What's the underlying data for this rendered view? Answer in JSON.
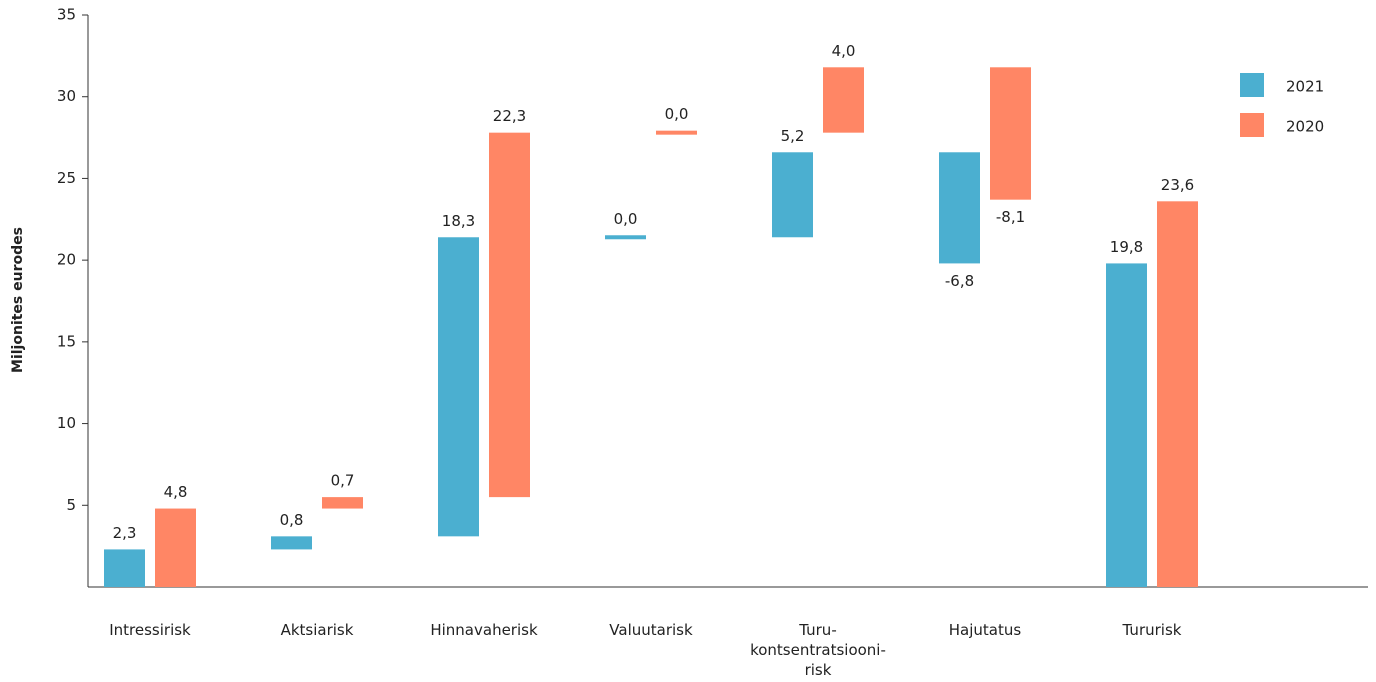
{
  "chart_data": {
    "type": "waterfall",
    "y_label": "Miljonites eurodes",
    "categories": [
      "Intressirisk",
      "Aktsiarisk",
      "Hinnavaherisk",
      "Valuutarisk",
      "Turu-kontsentratsiooni-risk",
      "Hajutatus",
      "Tururisk"
    ],
    "series": [
      {
        "name": "2021",
        "color": "#4bafd0",
        "values": [
          2.3,
          0.8,
          18.3,
          0.0,
          5.2,
          -6.8,
          19.8
        ],
        "value_labels": [
          "2,3",
          "0,8",
          "18,3",
          "0,0",
          "5,2",
          "-6,8",
          "19,8"
        ]
      },
      {
        "name": "2020",
        "color": "#ff8665",
        "values": [
          4.8,
          0.7,
          22.3,
          0.0,
          4.0,
          -8.1,
          23.6
        ],
        "value_labels": [
          "4,8",
          "0,7",
          "22,3",
          "0,0",
          "4,0",
          "-8,1",
          "23,6"
        ]
      }
    ],
    "ylim": [
      0,
      35
    ],
    "yticks": [
      5,
      10,
      15,
      20,
      25,
      30,
      35
    ],
    "legend": "upper right"
  }
}
